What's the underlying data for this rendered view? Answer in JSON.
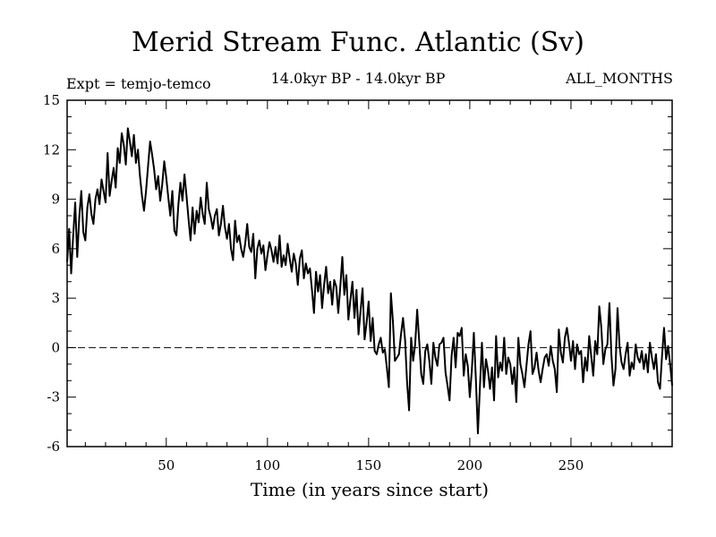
{
  "chart_data": {
    "type": "line",
    "title": "Merid Stream Func. Atlantic (Sv)",
    "subtitle_left": "Expt = temjo-temco",
    "subtitle_center": "14.0kyr BP - 14.0kyr BP",
    "subtitle_right": "ALL_MONTHS",
    "xlabel": "Time (in years since start)",
    "ylabel": "",
    "xlim": [
      1,
      300
    ],
    "ylim": [
      -6,
      15
    ],
    "xticks": [
      50,
      100,
      150,
      200,
      250
    ],
    "yticks": [
      -6,
      -3,
      0,
      3,
      6,
      9,
      12,
      15
    ],
    "reference_line": 0,
    "series": [
      {
        "name": "Merid Stream Func. Atlantic",
        "points": [
          [
            1,
            5.2
          ],
          [
            2,
            7.2
          ],
          [
            3,
            4.5
          ],
          [
            4,
            6.8
          ],
          [
            5,
            8.8
          ],
          [
            6,
            5.5
          ],
          [
            7,
            7.9
          ],
          [
            8,
            9.5
          ],
          [
            9,
            7.0
          ],
          [
            10,
            6.5
          ],
          [
            11,
            8.5
          ],
          [
            12,
            9.3
          ],
          [
            13,
            8.1
          ],
          [
            14,
            7.5
          ],
          [
            15,
            9.0
          ],
          [
            16,
            9.6
          ],
          [
            17,
            8.7
          ],
          [
            18,
            10.2
          ],
          [
            19,
            9.5
          ],
          [
            20,
            8.8
          ],
          [
            21,
            11.8
          ],
          [
            22,
            9.2
          ],
          [
            23,
            10.1
          ],
          [
            24,
            10.9
          ],
          [
            25,
            9.7
          ],
          [
            26,
            12.1
          ],
          [
            27,
            11.2
          ],
          [
            28,
            13.0
          ],
          [
            29,
            12.3
          ],
          [
            30,
            11.1
          ],
          [
            31,
            13.3
          ],
          [
            32,
            12.5
          ],
          [
            33,
            11.6
          ],
          [
            34,
            12.9
          ],
          [
            35,
            11.2
          ],
          [
            36,
            12.0
          ],
          [
            37,
            10.4
          ],
          [
            38,
            9.2
          ],
          [
            39,
            8.3
          ],
          [
            40,
            9.5
          ],
          [
            41,
            11.0
          ],
          [
            42,
            12.5
          ],
          [
            43,
            11.7
          ],
          [
            44,
            10.8
          ],
          [
            45,
            9.6
          ],
          [
            46,
            10.4
          ],
          [
            47,
            8.9
          ],
          [
            48,
            9.9
          ],
          [
            49,
            11.3
          ],
          [
            50,
            10.3
          ],
          [
            51,
            9.1
          ],
          [
            52,
            8.0
          ],
          [
            53,
            9.5
          ],
          [
            54,
            7.1
          ],
          [
            55,
            6.8
          ],
          [
            56,
            8.7
          ],
          [
            57,
            10.0
          ],
          [
            58,
            8.9
          ],
          [
            59,
            10.5
          ],
          [
            60,
            9.2
          ],
          [
            61,
            7.8
          ],
          [
            62,
            6.5
          ],
          [
            63,
            8.5
          ],
          [
            64,
            6.9
          ],
          [
            65,
            8.3
          ],
          [
            66,
            7.6
          ],
          [
            67,
            9.1
          ],
          [
            68,
            8.1
          ],
          [
            69,
            7.5
          ],
          [
            70,
            10.0
          ],
          [
            71,
            8.4
          ],
          [
            72,
            7.9
          ],
          [
            73,
            7.2
          ],
          [
            74,
            8.0
          ],
          [
            75,
            8.4
          ],
          [
            76,
            6.8
          ],
          [
            77,
            7.5
          ],
          [
            78,
            8.6
          ],
          [
            79,
            7.3
          ],
          [
            80,
            6.6
          ],
          [
            81,
            7.5
          ],
          [
            82,
            6.0
          ],
          [
            83,
            5.3
          ],
          [
            84,
            7.7
          ],
          [
            85,
            6.4
          ],
          [
            86,
            6.8
          ],
          [
            87,
            6.0
          ],
          [
            88,
            5.5
          ],
          [
            89,
            6.3
          ],
          [
            90,
            7.5
          ],
          [
            91,
            6.1
          ],
          [
            92,
            5.8
          ],
          [
            93,
            6.9
          ],
          [
            94,
            4.2
          ],
          [
            95,
            6.0
          ],
          [
            96,
            6.5
          ],
          [
            97,
            5.7
          ],
          [
            98,
            6.2
          ],
          [
            99,
            4.7
          ],
          [
            100,
            5.6
          ],
          [
            101,
            6.4
          ],
          [
            102,
            5.9
          ],
          [
            103,
            5.2
          ],
          [
            104,
            6.1
          ],
          [
            105,
            5.1
          ],
          [
            106,
            6.8
          ],
          [
            107,
            4.9
          ],
          [
            108,
            5.6
          ],
          [
            109,
            5.0
          ],
          [
            110,
            6.3
          ],
          [
            111,
            5.4
          ],
          [
            112,
            4.6
          ],
          [
            113,
            5.7
          ],
          [
            114,
            5.1
          ],
          [
            115,
            3.8
          ],
          [
            116,
            5.4
          ],
          [
            117,
            5.9
          ],
          [
            118,
            4.2
          ],
          [
            119,
            5.1
          ],
          [
            120,
            4.5
          ],
          [
            121,
            4.8
          ],
          [
            122,
            3.5
          ],
          [
            123,
            2.1
          ],
          [
            124,
            4.6
          ],
          [
            125,
            3.4
          ],
          [
            126,
            4.4
          ],
          [
            127,
            2.4
          ],
          [
            128,
            3.8
          ],
          [
            129,
            4.9
          ],
          [
            130,
            3.3
          ],
          [
            131,
            4.0
          ],
          [
            132,
            2.6
          ],
          [
            133,
            4.1
          ],
          [
            134,
            3.7
          ],
          [
            135,
            2.1
          ],
          [
            136,
            3.7
          ],
          [
            137,
            5.5
          ],
          [
            138,
            3.2
          ],
          [
            139,
            4.4
          ],
          [
            140,
            1.7
          ],
          [
            141,
            2.9
          ],
          [
            142,
            4.0
          ],
          [
            143,
            1.8
          ],
          [
            144,
            3.5
          ],
          [
            145,
            0.8
          ],
          [
            146,
            2.2
          ],
          [
            147,
            3.6
          ],
          [
            148,
            0.5
          ],
          [
            149,
            1.5
          ],
          [
            150,
            2.8
          ],
          [
            151,
            0.4
          ],
          [
            152,
            1.8
          ],
          [
            153,
            -0.2
          ],
          [
            154,
            -0.4
          ],
          [
            155,
            0.2
          ],
          [
            156,
            0.6
          ],
          [
            157,
            -0.3
          ],
          [
            158,
            -0.1
          ],
          [
            159,
            -1.2
          ],
          [
            160,
            -2.4
          ],
          [
            161,
            3.3
          ],
          [
            162,
            1.6
          ],
          [
            163,
            -0.8
          ],
          [
            164,
            -0.6
          ],
          [
            165,
            -0.4
          ],
          [
            166,
            0.8
          ],
          [
            167,
            1.8
          ],
          [
            168,
            0.5
          ],
          [
            169,
            -2.1
          ],
          [
            170,
            -3.8
          ],
          [
            171,
            0.6
          ],
          [
            172,
            -0.8
          ],
          [
            173,
            0.2
          ],
          [
            174,
            2.3
          ],
          [
            175,
            0.4
          ],
          [
            176,
            -1.6
          ],
          [
            177,
            -2.2
          ],
          [
            178,
            -0.2
          ],
          [
            179,
            0.2
          ],
          [
            180,
            -0.8
          ],
          [
            181,
            -2.2
          ],
          [
            182,
            0.3
          ],
          [
            183,
            -0.6
          ],
          [
            184,
            -1.1
          ],
          [
            185,
            0.2
          ],
          [
            186,
            0.3
          ],
          [
            187,
            0.6
          ],
          [
            188,
            -1.5
          ],
          [
            189,
            -2.3
          ],
          [
            190,
            -3.2
          ],
          [
            191,
            -0.5
          ],
          [
            192,
            0.6
          ],
          [
            193,
            -1.2
          ],
          [
            194,
            0.9
          ],
          [
            195,
            0.7
          ],
          [
            196,
            1.2
          ],
          [
            197,
            -1.7
          ],
          [
            198,
            -0.4
          ],
          [
            199,
            -1.1
          ],
          [
            200,
            -3.0
          ],
          [
            201,
            -1.4
          ],
          [
            202,
            0.9
          ],
          [
            203,
            -1.9
          ],
          [
            204,
            -5.2
          ],
          [
            205,
            -2.4
          ],
          [
            206,
            0.3
          ],
          [
            207,
            -2.4
          ],
          [
            208,
            -0.7
          ],
          [
            209,
            -1.4
          ],
          [
            210,
            -2.5
          ],
          [
            211,
            -1.2
          ],
          [
            212,
            -3.2
          ],
          [
            213,
            0.7
          ],
          [
            214,
            -1.8
          ],
          [
            215,
            -0.9
          ],
          [
            216,
            -1.4
          ],
          [
            217,
            0.6
          ],
          [
            218,
            -1.6
          ],
          [
            219,
            -0.6
          ],
          [
            220,
            -1.0
          ],
          [
            221,
            -2.2
          ],
          [
            222,
            -1.2
          ],
          [
            223,
            -3.3
          ],
          [
            224,
            0.6
          ],
          [
            225,
            -1.0
          ],
          [
            226,
            -1.6
          ],
          [
            227,
            -2.4
          ],
          [
            228,
            -1.1
          ],
          [
            229,
            0.2
          ],
          [
            230,
            1.0
          ],
          [
            231,
            -1.6
          ],
          [
            232,
            -1.2
          ],
          [
            233,
            -0.3
          ],
          [
            234,
            -1.4
          ],
          [
            235,
            -2.1
          ],
          [
            236,
            -1.3
          ],
          [
            237,
            -0.6
          ],
          [
            238,
            -0.4
          ],
          [
            239,
            -1.1
          ],
          [
            240,
            0.1
          ],
          [
            241,
            -0.8
          ],
          [
            242,
            -1.3
          ],
          [
            243,
            -2.7
          ],
          [
            244,
            1.1
          ],
          [
            245,
            -0.3
          ],
          [
            246,
            -0.9
          ],
          [
            247,
            0.6
          ],
          [
            248,
            1.2
          ],
          [
            249,
            0.3
          ],
          [
            250,
            -0.8
          ],
          [
            251,
            0.4
          ],
          [
            252,
            -1.3
          ],
          [
            253,
            0.2
          ],
          [
            254,
            -0.4
          ],
          [
            255,
            -0.2
          ],
          [
            256,
            -2.1
          ],
          [
            257,
            -0.6
          ],
          [
            258,
            -1.4
          ],
          [
            259,
            0.7
          ],
          [
            260,
            -0.5
          ],
          [
            261,
            -1.7
          ],
          [
            262,
            0.4
          ],
          [
            263,
            -0.4
          ],
          [
            264,
            2.5
          ],
          [
            265,
            1.2
          ],
          [
            266,
            -1.0
          ],
          [
            267,
            -0.1
          ],
          [
            268,
            0.2
          ],
          [
            269,
            2.7
          ],
          [
            270,
            -0.5
          ],
          [
            271,
            -2.3
          ],
          [
            272,
            -1.3
          ],
          [
            273,
            2.4
          ],
          [
            274,
            0.1
          ],
          [
            275,
            -0.9
          ],
          [
            276,
            -1.3
          ],
          [
            277,
            -0.4
          ],
          [
            278,
            0.3
          ],
          [
            279,
            -1.7
          ],
          [
            280,
            -0.9
          ],
          [
            281,
            -1.3
          ],
          [
            282,
            0.2
          ],
          [
            283,
            -0.6
          ],
          [
            284,
            -0.9
          ],
          [
            285,
            -0.2
          ],
          [
            286,
            -1.3
          ],
          [
            287,
            -0.4
          ],
          [
            288,
            -1.5
          ],
          [
            289,
            0.3
          ],
          [
            290,
            -0.6
          ],
          [
            291,
            -1.3
          ],
          [
            292,
            -0.4
          ],
          [
            293,
            -2.1
          ],
          [
            294,
            -2.5
          ],
          [
            295,
            -0.5
          ],
          [
            296,
            1.2
          ],
          [
            297,
            -0.7
          ],
          [
            298,
            0.1
          ],
          [
            299,
            -1.0
          ],
          [
            300,
            -2.3
          ]
        ]
      }
    ]
  }
}
